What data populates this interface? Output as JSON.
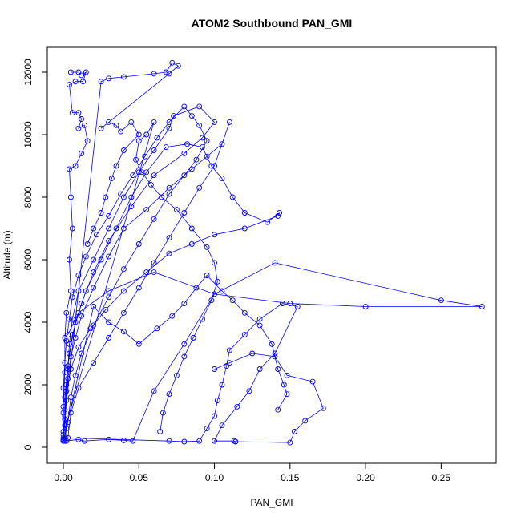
{
  "chart_data": {
    "type": "scatter",
    "title": "ATOM2 Southbound PAN_GMI",
    "xlabel": "PAN_GMI",
    "ylabel": "Altitude (m)",
    "xlim": [
      0,
      0.28
    ],
    "ylim": [
      0,
      12300
    ],
    "xticks": [
      0.0,
      0.05,
      0.1,
      0.15,
      0.2,
      0.25
    ],
    "xtick_labels": [
      "0.00",
      "0.05",
      "0.10",
      "0.15",
      "0.20",
      "0.25"
    ],
    "yticks": [
      0,
      2000,
      4000,
      6000,
      8000,
      10000,
      12000
    ],
    "ytick_labels": [
      "0",
      "2000",
      "4000",
      "6000",
      "8000",
      "10000",
      "12000"
    ],
    "grid": false,
    "colors": {
      "series": "#0000ff",
      "axis": "#000000"
    },
    "series": [
      {
        "style": "line+open-circle",
        "points": [
          [
            0.001,
            200
          ],
          [
            0.002,
            600
          ],
          [
            0.001,
            1200
          ],
          [
            0.002,
            1800
          ],
          [
            0.003,
            2500
          ],
          [
            0.004,
            3300
          ],
          [
            0.006,
            4100
          ],
          [
            0.01,
            5000
          ],
          [
            0.02,
            6000
          ],
          [
            0.03,
            7000
          ],
          [
            0.04,
            8000
          ],
          [
            0.05,
            8800
          ],
          [
            0.06,
            9500
          ],
          [
            0.07,
            10200
          ],
          [
            0.073,
            10600
          ],
          [
            0.09,
            10900
          ],
          [
            0.1,
            10400
          ],
          [
            0.092,
            9900
          ],
          [
            0.08,
            9400
          ],
          [
            0.06,
            8700
          ],
          [
            0.045,
            7700
          ],
          [
            0.03,
            6600
          ],
          [
            0.02,
            5600
          ],
          [
            0.012,
            4600
          ],
          [
            0.006,
            3600
          ],
          [
            0.003,
            2600
          ],
          [
            0.001,
            1600
          ],
          [
            0.001,
            700
          ],
          [
            0.002,
            200
          ],
          [
            0.01,
            250
          ],
          [
            0.014,
            200
          ],
          [
            0.03,
            250
          ],
          [
            0.04,
            220
          ],
          [
            0.046,
            200
          ],
          [
            0.06,
            1800
          ],
          [
            0.08,
            3300
          ],
          [
            0.1,
            4900
          ],
          [
            0.14,
            5900
          ],
          [
            0.25,
            4700
          ],
          [
            0.277,
            4500
          ],
          [
            0.2,
            4500
          ],
          [
            0.15,
            4600
          ],
          [
            0.1,
            4900
          ],
          [
            0.06,
            5600
          ],
          [
            0.03,
            5000
          ],
          [
            0.01,
            4300
          ],
          [
            0.003,
            3600
          ]
        ]
      },
      {
        "style": "line+open-circle",
        "points": [
          [
            0.0,
            300
          ],
          [
            0.001,
            900
          ],
          [
            0.002,
            1500
          ],
          [
            0.003,
            2200
          ],
          [
            0.005,
            2900
          ],
          [
            0.008,
            3500
          ],
          [
            0.012,
            4200
          ],
          [
            0.02,
            5100
          ],
          [
            0.03,
            6100
          ],
          [
            0.04,
            7000
          ],
          [
            0.055,
            7600
          ],
          [
            0.07,
            8300
          ],
          [
            0.085,
            8900
          ],
          [
            0.095,
            9300
          ],
          [
            0.105,
            9700
          ],
          [
            0.11,
            10400
          ],
          [
            0.1,
            9000
          ],
          [
            0.09,
            8300
          ],
          [
            0.08,
            7500
          ],
          [
            0.07,
            6700
          ],
          [
            0.06,
            5900
          ],
          [
            0.05,
            5100
          ],
          [
            0.04,
            4300
          ],
          [
            0.03,
            3500
          ],
          [
            0.02,
            2700
          ],
          [
            0.01,
            1900
          ],
          [
            0.005,
            1100
          ],
          [
            0.003,
            300
          ],
          [
            0.07,
            200
          ],
          [
            0.08,
            180
          ],
          [
            0.09,
            200
          ],
          [
            0.095,
            600
          ],
          [
            0.1,
            1000
          ],
          [
            0.102,
            1500
          ],
          [
            0.105,
            2000
          ],
          [
            0.108,
            2600
          ],
          [
            0.11,
            3100
          ],
          [
            0.12,
            3600
          ],
          [
            0.13,
            4100
          ],
          [
            0.145,
            4600
          ],
          [
            0.155,
            4500
          ],
          [
            0.14,
            3000
          ],
          [
            0.13,
            2500
          ],
          [
            0.123,
            1800
          ],
          [
            0.115,
            1300
          ],
          [
            0.105,
            700
          ],
          [
            0.1,
            200
          ],
          [
            0.113,
            200
          ],
          [
            0.114,
            180
          ],
          [
            0.15,
            150
          ],
          [
            0.153,
            500
          ],
          [
            0.16,
            850
          ],
          [
            0.172,
            1250
          ],
          [
            0.165,
            2100
          ],
          [
            0.148,
            2300
          ],
          [
            0.14,
            2900
          ],
          [
            0.125,
            3000
          ],
          [
            0.11,
            2700
          ],
          [
            0.1,
            2500
          ]
        ]
      },
      {
        "style": "line+open-circle",
        "points": [
          [
            0.005,
            12000
          ],
          [
            0.01,
            12000
          ],
          [
            0.012,
            11900
          ],
          [
            0.015,
            12000
          ],
          [
            0.013,
            11700
          ],
          [
            0.008,
            11700
          ],
          [
            0.004,
            11600
          ],
          [
            0.006,
            10700
          ],
          [
            0.01,
            10700
          ],
          [
            0.012,
            10500
          ],
          [
            0.01,
            10200
          ],
          [
            0.014,
            10300
          ],
          [
            0.016,
            9800
          ],
          [
            0.012,
            9400
          ],
          [
            0.008,
            9000
          ],
          [
            0.004,
            8900
          ],
          [
            0.005,
            8000
          ],
          [
            0.006,
            7000
          ],
          [
            0.004,
            6000
          ],
          [
            0.005,
            5000
          ],
          [
            0.002,
            4300
          ],
          [
            0.001,
            3500
          ],
          [
            0.001,
            2400
          ],
          [
            0.0,
            1300
          ],
          [
            0.0,
            500
          ],
          [
            0.025,
            11700
          ],
          [
            0.03,
            11800
          ],
          [
            0.04,
            11850
          ],
          [
            0.06,
            11950
          ],
          [
            0.068,
            12000
          ],
          [
            0.072,
            12300
          ],
          [
            0.076,
            12200
          ],
          [
            0.07,
            11950
          ],
          [
            0.025,
            10200
          ],
          [
            0.03,
            10400
          ],
          [
            0.035,
            10300
          ],
          [
            0.038,
            10100
          ],
          [
            0.045,
            10400
          ],
          [
            0.05,
            10000
          ],
          [
            0.04,
            9500
          ],
          [
            0.035,
            9000
          ],
          [
            0.032,
            8600
          ],
          [
            0.028,
            8000
          ],
          [
            0.025,
            7500
          ],
          [
            0.02,
            7000
          ],
          [
            0.016,
            6500
          ]
        ]
      },
      {
        "style": "line+open-circle",
        "points": [
          [
            0.0,
            250
          ],
          [
            0.001,
            1000
          ],
          [
            0.002,
            2000
          ],
          [
            0.004,
            3000
          ],
          [
            0.008,
            4000
          ],
          [
            0.015,
            5000
          ],
          [
            0.025,
            6000
          ],
          [
            0.035,
            7000
          ],
          [
            0.045,
            8000
          ],
          [
            0.055,
            8800
          ],
          [
            0.068,
            9600
          ],
          [
            0.082,
            9700
          ],
          [
            0.092,
            9600
          ],
          [
            0.098,
            9000
          ],
          [
            0.105,
            8600
          ],
          [
            0.112,
            8000
          ],
          [
            0.12,
            7500
          ],
          [
            0.135,
            7200
          ],
          [
            0.143,
            7500
          ],
          [
            0.142,
            7400
          ],
          [
            0.12,
            7000
          ],
          [
            0.1,
            6800
          ],
          [
            0.085,
            6500
          ],
          [
            0.07,
            6200
          ],
          [
            0.055,
            5600
          ],
          [
            0.04,
            5000
          ],
          [
            0.028,
            4400
          ],
          [
            0.018,
            3800
          ],
          [
            0.01,
            3200
          ],
          [
            0.005,
            2500
          ],
          [
            0.002,
            1800
          ],
          [
            0.001,
            900
          ],
          [
            0.0,
            200
          ],
          [
            0.02,
            4500
          ],
          [
            0.03,
            4000
          ],
          [
            0.04,
            3700
          ],
          [
            0.05,
            3300
          ],
          [
            0.062,
            3800
          ],
          [
            0.072,
            4200
          ],
          [
            0.08,
            4600
          ],
          [
            0.088,
            5100
          ],
          [
            0.095,
            5500
          ],
          [
            0.105,
            5000
          ],
          [
            0.112,
            4700
          ],
          [
            0.12,
            4300
          ],
          [
            0.13,
            3900
          ],
          [
            0.138,
            3300
          ],
          [
            0.142,
            2500
          ],
          [
            0.146,
            2000
          ],
          [
            0.148,
            1700
          ],
          [
            0.142,
            1200
          ]
        ]
      },
      {
        "style": "line+open-circle",
        "points": [
          [
            0.0,
            200
          ],
          [
            0.003,
            800
          ],
          [
            0.005,
            1600
          ],
          [
            0.008,
            2300
          ],
          [
            0.012,
            3000
          ],
          [
            0.02,
            3900
          ],
          [
            0.03,
            4800
          ],
          [
            0.04,
            5700
          ],
          [
            0.05,
            6500
          ],
          [
            0.06,
            7300
          ],
          [
            0.07,
            8100
          ],
          [
            0.08,
            8700
          ],
          [
            0.088,
            9200
          ],
          [
            0.095,
            9800
          ],
          [
            0.09,
            10300
          ],
          [
            0.085,
            10600
          ],
          [
            0.08,
            10900
          ],
          [
            0.07,
            10400
          ],
          [
            0.062,
            9900
          ],
          [
            0.054,
            9300
          ],
          [
            0.046,
            8700
          ],
          [
            0.038,
            8100
          ],
          [
            0.03,
            7400
          ],
          [
            0.022,
            6800
          ],
          [
            0.015,
            6100
          ],
          [
            0.01,
            5500
          ],
          [
            0.006,
            4800
          ],
          [
            0.004,
            4100
          ],
          [
            0.002,
            3400
          ],
          [
            0.001,
            2700
          ],
          [
            0.0,
            1900
          ],
          [
            0.0,
            1100
          ],
          [
            0.0,
            400
          ],
          [
            0.06,
            10400
          ],
          [
            0.055,
            10000
          ],
          [
            0.05,
            9800
          ],
          [
            0.048,
            9200
          ],
          [
            0.052,
            8800
          ],
          [
            0.058,
            8400
          ],
          [
            0.065,
            8000
          ],
          [
            0.075,
            7600
          ],
          [
            0.085,
            7000
          ],
          [
            0.095,
            6400
          ],
          [
            0.1,
            5900
          ],
          [
            0.102,
            5300
          ],
          [
            0.098,
            4700
          ],
          [
            0.092,
            4100
          ],
          [
            0.086,
            3500
          ],
          [
            0.08,
            2900
          ],
          [
            0.075,
            2300
          ],
          [
            0.07,
            1700
          ],
          [
            0.066,
            1100
          ],
          [
            0.064,
            500
          ]
        ]
      }
    ]
  }
}
